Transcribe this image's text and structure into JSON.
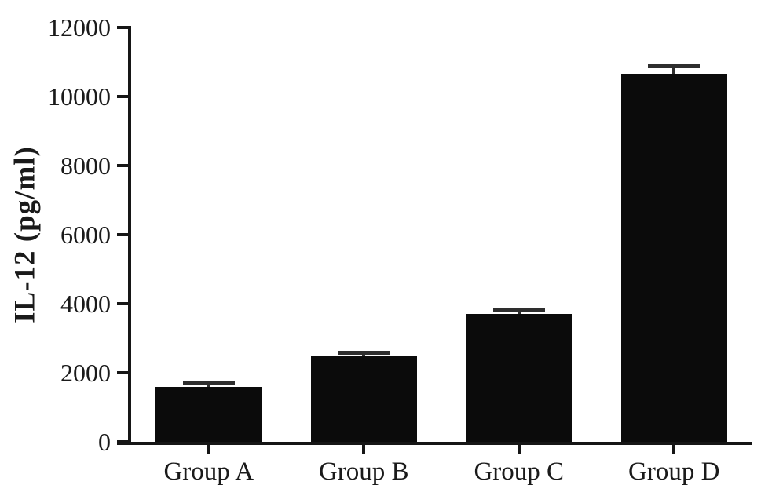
{
  "chart_data": {
    "type": "bar",
    "title": "",
    "xlabel": "",
    "ylabel": "IL-12 (pg/ml)",
    "categories": [
      "Group A",
      "Group B",
      "Group C",
      "Group D"
    ],
    "series": [
      {
        "name": "IL-12",
        "values": [
          1600,
          2500,
          3700,
          10650
        ],
        "errors_plus": [
          100,
          90,
          130,
          230
        ]
      }
    ],
    "ylim": [
      0,
      12000
    ],
    "yticks": [
      0,
      2000,
      4000,
      6000,
      8000,
      10000,
      12000
    ],
    "grid": false,
    "legend_position": "none",
    "error_bar_style": "upper-cap",
    "colors": {
      "bar": "#0b0b0b",
      "axis": "#161616",
      "error": "#2e2e2e",
      "text": "#1a1a1a",
      "background": "#ffffff"
    }
  }
}
